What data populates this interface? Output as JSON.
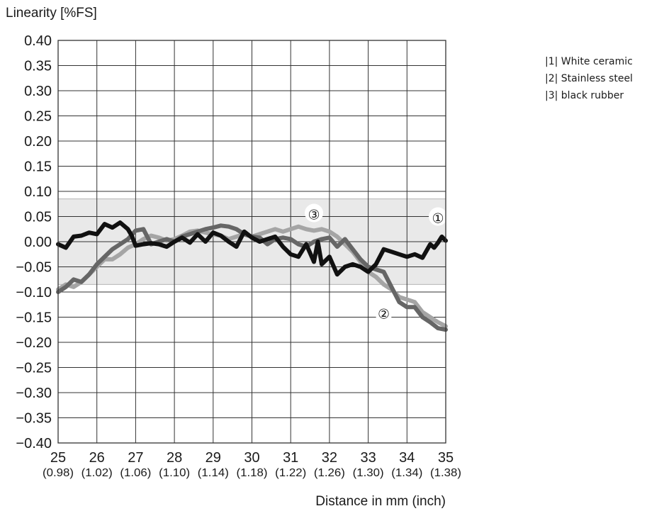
{
  "chart_data": {
    "type": "line",
    "ylabel": "Linearity [%FS]",
    "xlabel": "Distance in mm (inch)",
    "xlim": [
      25,
      35
    ],
    "ylim": [
      -0.4,
      0.4
    ],
    "grid": true,
    "x_ticks": [
      25,
      26,
      27,
      28,
      29,
      30,
      31,
      32,
      33,
      34,
      35
    ],
    "x_tick_labels": [
      "25",
      "26",
      "27",
      "28",
      "29",
      "30",
      "31",
      "32",
      "33",
      "34",
      "35"
    ],
    "x_tick_sublabels": [
      "(0.98)",
      "(1.02)",
      "(1.06)",
      "(1.10)",
      "(1.14)",
      "(1.18)",
      "(1.22)",
      "(1.26)",
      "(1.30)",
      "(1.34)",
      "(1.38)"
    ],
    "y_ticks": [
      0.4,
      0.35,
      0.3,
      0.25,
      0.2,
      0.15,
      0.1,
      0.05,
      0.0,
      -0.05,
      -0.1,
      -0.15,
      -0.2,
      -0.25,
      -0.3,
      -0.35,
      -0.4
    ],
    "y_tick_labels": [
      "0.40",
      "0.35",
      "0.30",
      "0.25",
      "0.20",
      "0.15",
      "0.10",
      "0.05",
      "0.00",
      "−0.05",
      "−0.10",
      "−0.15",
      "−0.20",
      "−0.25",
      "−0.30",
      "−0.35",
      "−0.40"
    ],
    "tolerance_band": [
      -0.085,
      0.085
    ],
    "legend": {
      "placement": "top-right",
      "entries": [
        "|1| White ceramic",
        "|2| Stainless steel",
        "|3| black rubber"
      ]
    },
    "callouts": [
      {
        "label": "①",
        "series": 0,
        "x": 34.8,
        "y": 0.05
      },
      {
        "label": "②",
        "series": 1,
        "x": 33.4,
        "y": -0.14
      },
      {
        "label": "③",
        "series": 2,
        "x": 31.6,
        "y": 0.057
      }
    ],
    "series": [
      {
        "color": "#111111",
        "points": [
          [
            25.0,
            -0.005
          ],
          [
            25.2,
            -0.012
          ],
          [
            25.4,
            0.01
          ],
          [
            25.6,
            0.012
          ],
          [
            25.8,
            0.018
          ],
          [
            26.0,
            0.015
          ],
          [
            26.2,
            0.035
          ],
          [
            26.4,
            0.028
          ],
          [
            26.6,
            0.038
          ],
          [
            26.8,
            0.025
          ],
          [
            26.9,
            0.012
          ],
          [
            27.0,
            -0.008
          ],
          [
            27.2,
            -0.005
          ],
          [
            27.4,
            -0.003
          ],
          [
            27.6,
            -0.005
          ],
          [
            27.8,
            -0.01
          ],
          [
            28.0,
            0.0
          ],
          [
            28.2,
            0.008
          ],
          [
            28.4,
            -0.002
          ],
          [
            28.6,
            0.015
          ],
          [
            28.8,
            0.0
          ],
          [
            29.0,
            0.018
          ],
          [
            29.2,
            0.012
          ],
          [
            29.4,
            0.0
          ],
          [
            29.6,
            -0.01
          ],
          [
            29.8,
            0.02
          ],
          [
            30.0,
            0.008
          ],
          [
            30.2,
            0.0
          ],
          [
            30.4,
            0.005
          ],
          [
            30.6,
            0.01
          ],
          [
            30.8,
            -0.01
          ],
          [
            31.0,
            -0.025
          ],
          [
            31.2,
            -0.03
          ],
          [
            31.4,
            -0.005
          ],
          [
            31.6,
            -0.04
          ],
          [
            31.7,
            0.0
          ],
          [
            31.8,
            -0.045
          ],
          [
            32.0,
            -0.03
          ],
          [
            32.2,
            -0.065
          ],
          [
            32.4,
            -0.05
          ],
          [
            32.6,
            -0.045
          ],
          [
            32.8,
            -0.05
          ],
          [
            33.0,
            -0.06
          ],
          [
            33.2,
            -0.045
          ],
          [
            33.4,
            -0.015
          ],
          [
            33.6,
            -0.02
          ],
          [
            33.8,
            -0.025
          ],
          [
            34.0,
            -0.03
          ],
          [
            34.2,
            -0.025
          ],
          [
            34.4,
            -0.032
          ],
          [
            34.6,
            -0.005
          ],
          [
            34.7,
            -0.012
          ],
          [
            34.8,
            -0.002
          ],
          [
            34.9,
            0.01
          ],
          [
            35.0,
            0.002
          ]
        ]
      },
      {
        "color": "#666666",
        "points": [
          [
            25.0,
            -0.1
          ],
          [
            25.2,
            -0.09
          ],
          [
            25.4,
            -0.075
          ],
          [
            25.6,
            -0.08
          ],
          [
            25.8,
            -0.065
          ],
          [
            26.0,
            -0.045
          ],
          [
            26.2,
            -0.03
          ],
          [
            26.4,
            -0.015
          ],
          [
            26.6,
            -0.005
          ],
          [
            26.8,
            0.005
          ],
          [
            27.0,
            0.022
          ],
          [
            27.2,
            0.025
          ],
          [
            27.4,
            -0.005
          ],
          [
            27.6,
            0.0
          ],
          [
            27.8,
            0.005
          ],
          [
            28.0,
            0.0
          ],
          [
            28.2,
            0.01
          ],
          [
            28.4,
            0.015
          ],
          [
            28.6,
            0.02
          ],
          [
            28.8,
            0.025
          ],
          [
            29.0,
            0.028
          ],
          [
            29.2,
            0.032
          ],
          [
            29.4,
            0.03
          ],
          [
            29.6,
            0.025
          ],
          [
            29.8,
            0.015
          ],
          [
            30.0,
            0.01
          ],
          [
            30.2,
            0.008
          ],
          [
            30.4,
            -0.005
          ],
          [
            30.6,
            0.005
          ],
          [
            30.8,
            0.008
          ],
          [
            31.0,
            0.005
          ],
          [
            31.2,
            -0.005
          ],
          [
            31.4,
            -0.01
          ],
          [
            31.6,
            0.0
          ],
          [
            31.8,
            0.005
          ],
          [
            32.0,
            0.008
          ],
          [
            32.2,
            -0.01
          ],
          [
            32.4,
            0.005
          ],
          [
            32.6,
            -0.015
          ],
          [
            32.8,
            -0.035
          ],
          [
            33.0,
            -0.05
          ],
          [
            33.2,
            -0.055
          ],
          [
            33.4,
            -0.06
          ],
          [
            33.6,
            -0.09
          ],
          [
            33.8,
            -0.12
          ],
          [
            34.0,
            -0.13
          ],
          [
            34.2,
            -0.13
          ],
          [
            34.4,
            -0.15
          ],
          [
            34.6,
            -0.16
          ],
          [
            34.8,
            -0.172
          ],
          [
            35.0,
            -0.175
          ]
        ]
      },
      {
        "color": "#a5a5a5",
        "points": [
          [
            25.0,
            -0.095
          ],
          [
            25.2,
            -0.085
          ],
          [
            25.4,
            -0.09
          ],
          [
            25.6,
            -0.08
          ],
          [
            25.8,
            -0.065
          ],
          [
            26.0,
            -0.05
          ],
          [
            26.2,
            -0.035
          ],
          [
            26.4,
            -0.035
          ],
          [
            26.6,
            -0.025
          ],
          [
            26.8,
            -0.012
          ],
          [
            27.0,
            -0.005
          ],
          [
            27.2,
            0.005
          ],
          [
            27.4,
            0.012
          ],
          [
            27.6,
            0.008
          ],
          [
            27.8,
            0.002
          ],
          [
            28.0,
            0.005
          ],
          [
            28.2,
            0.012
          ],
          [
            28.4,
            0.02
          ],
          [
            28.6,
            0.022
          ],
          [
            28.8,
            0.018
          ],
          [
            29.0,
            0.015
          ],
          [
            29.2,
            0.012
          ],
          [
            29.4,
            0.005
          ],
          [
            29.6,
            0.01
          ],
          [
            29.8,
            0.015
          ],
          [
            30.0,
            0.01
          ],
          [
            30.2,
            0.015
          ],
          [
            30.4,
            0.02
          ],
          [
            30.6,
            0.025
          ],
          [
            30.8,
            0.02
          ],
          [
            31.0,
            0.025
          ],
          [
            31.2,
            0.03
          ],
          [
            31.4,
            0.025
          ],
          [
            31.6,
            0.022
          ],
          [
            31.8,
            0.025
          ],
          [
            32.0,
            0.02
          ],
          [
            32.2,
            0.01
          ],
          [
            32.4,
            -0.005
          ],
          [
            32.6,
            -0.02
          ],
          [
            32.8,
            -0.04
          ],
          [
            33.0,
            -0.06
          ],
          [
            33.2,
            -0.07
          ],
          [
            33.4,
            -0.085
          ],
          [
            33.6,
            -0.095
          ],
          [
            33.8,
            -0.11
          ],
          [
            34.0,
            -0.115
          ],
          [
            34.2,
            -0.12
          ],
          [
            34.4,
            -0.14
          ],
          [
            34.6,
            -0.15
          ],
          [
            34.8,
            -0.16
          ],
          [
            35.0,
            -0.168
          ]
        ]
      }
    ]
  }
}
